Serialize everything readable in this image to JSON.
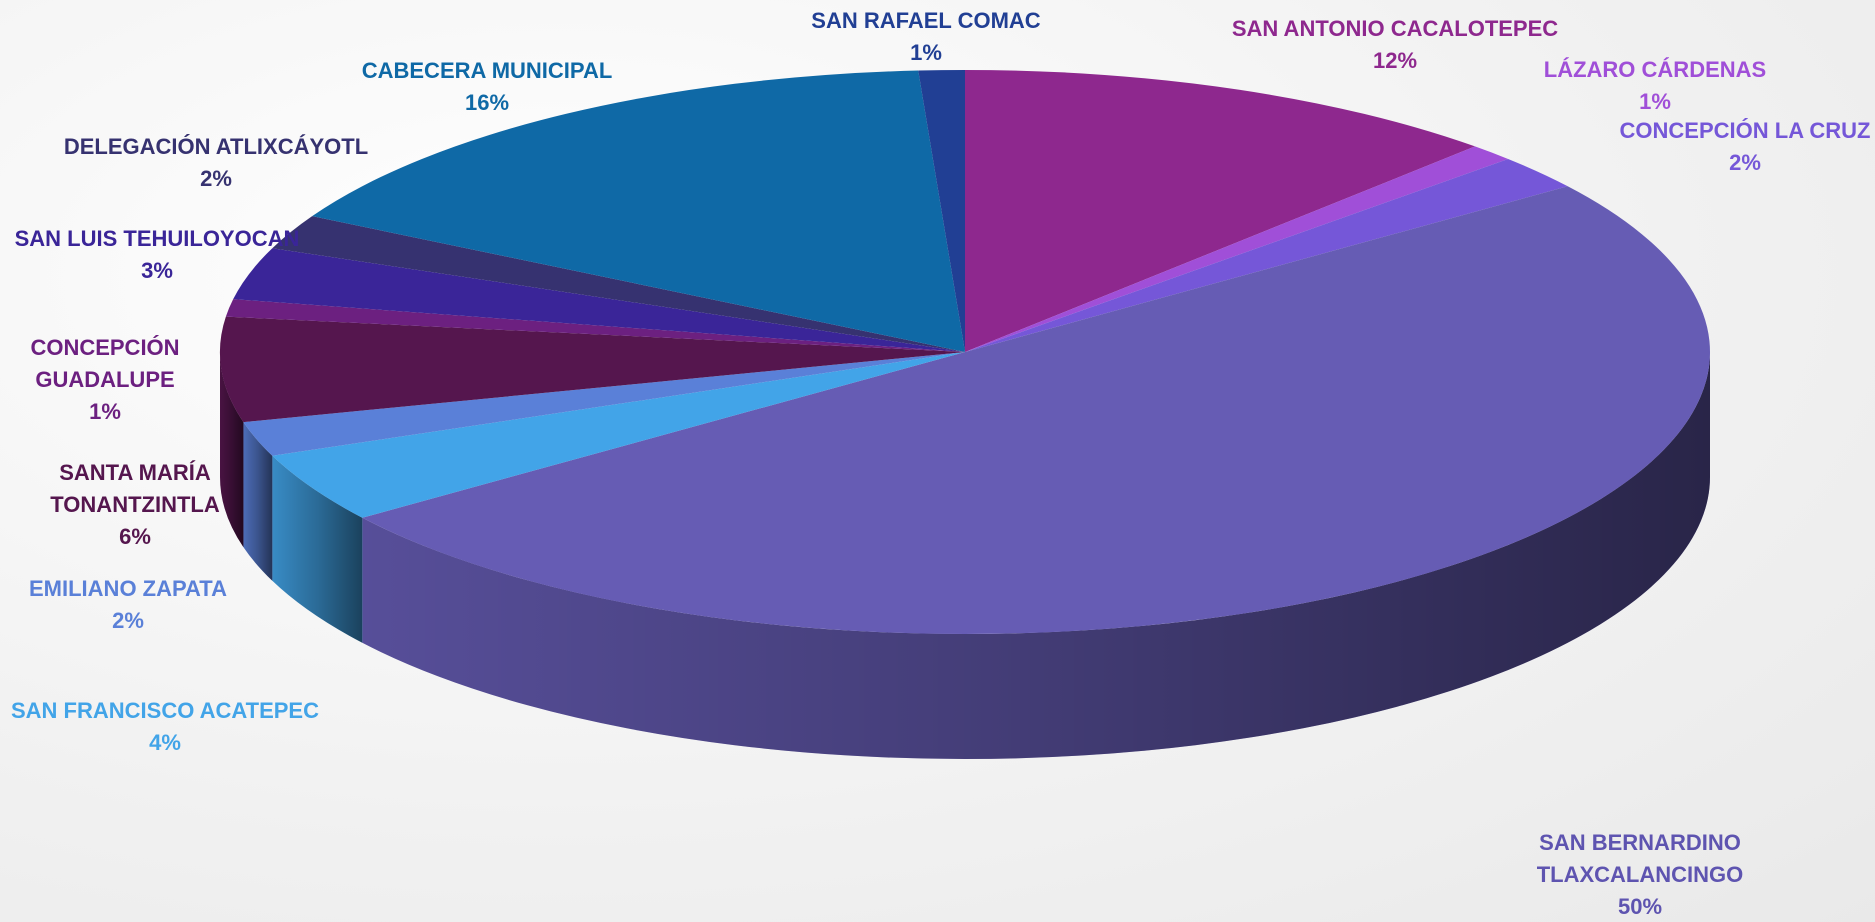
{
  "chart_data": {
    "type": "pie",
    "categories": [
      "SAN ANTONIO CACALOTEPEC",
      "LÁZARO CÁRDENAS",
      "CONCEPCIÓN LA CRUZ",
      "SAN BERNARDINO TLAXCALANCINGO",
      "SAN FRANCISCO ACATEPEC",
      "EMILIANO ZAPATA",
      "SANTA MARÍA TONANTZINTLA",
      "CONCEPCIÓN GUADALUPE",
      "SAN LUIS TEHUILOYOCAN",
      "DELEGACIÓN ATLIXCÁYOTL",
      "CABECERA MUNICIPAL",
      "SAN RAFAEL COMAC"
    ],
    "values": [
      12,
      1,
      2,
      50,
      4,
      2,
      6,
      1,
      3,
      2,
      16,
      1
    ],
    "value_labels": [
      "12%",
      "1%",
      "2%",
      "50%",
      "4%",
      "2%",
      "6%",
      "1%",
      "3%",
      "2%",
      "16%",
      "1%"
    ],
    "colors": [
      "#8e288e",
      "#a04fd8",
      "#7557d8",
      "#665cb4",
      "#42a4e8",
      "#5a80d8",
      "#55164e",
      "#6c2080",
      "#3a2598",
      "#363270",
      "#0f69a6",
      "#213f94"
    ]
  }
}
